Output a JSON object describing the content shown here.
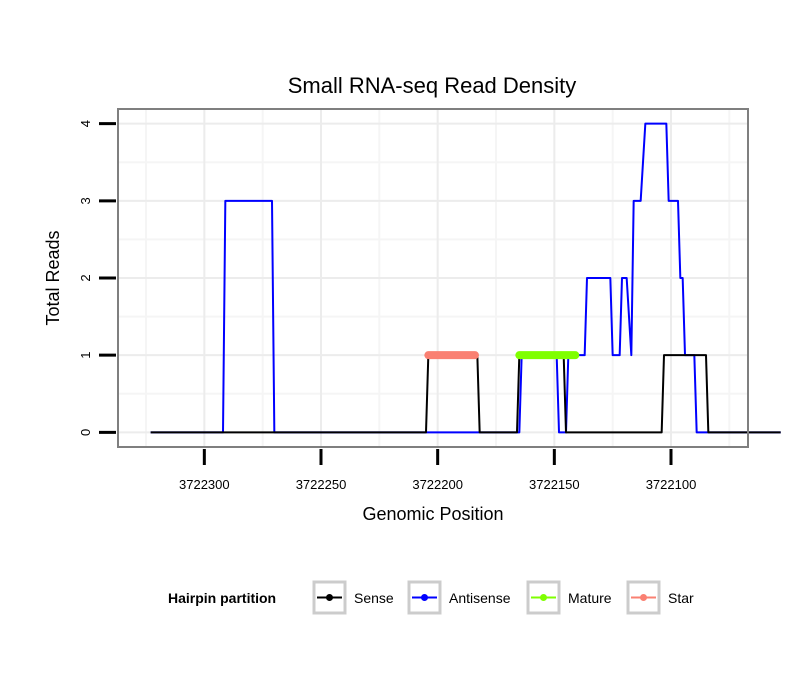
{
  "chart_data": {
    "type": "line",
    "title": "Small RNA-seq Read Density",
    "xlabel": "Genomic Position",
    "ylabel": "Total Reads",
    "x_reversed": true,
    "xlim": [
      3722337,
      3722067
    ],
    "ylim": [
      -0.19,
      4.19
    ],
    "x_ticks": [
      3722300,
      3722250,
      3722200,
      3722150,
      3722100
    ],
    "x_tick_labels": [
      "3722300",
      "3722250",
      "3722200",
      "3722150",
      "3722100"
    ],
    "y_ticks": [
      0,
      1,
      2,
      3,
      4
    ],
    "y_tick_labels": [
      "0",
      "1",
      "2",
      "3",
      "4"
    ],
    "legend": {
      "title": "Hairpin partition",
      "position": "bottom",
      "entries": [
        {
          "name": "Sense",
          "color": "#000000"
        },
        {
          "name": "Antisense",
          "color": "#0000ff"
        },
        {
          "name": "Mature",
          "color": "#7fff00"
        },
        {
          "name": "Star",
          "color": "#fa8072"
        }
      ]
    },
    "series": [
      {
        "name": "Antisense",
        "color": "#0000ff",
        "points": [
          [
            3722323,
            0
          ],
          [
            3722292,
            0
          ],
          [
            3722291,
            3
          ],
          [
            3722271,
            3
          ],
          [
            3722270,
            0
          ],
          [
            3722165,
            0
          ],
          [
            3722164,
            1
          ],
          [
            3722149,
            1
          ],
          [
            3722148,
            0
          ],
          [
            3722145,
            0
          ],
          [
            3722144,
            1
          ],
          [
            3722137,
            1
          ],
          [
            3722136,
            2
          ],
          [
            3722126,
            2
          ],
          [
            3722125,
            1
          ],
          [
            3722122,
            1
          ],
          [
            3722121,
            2
          ],
          [
            3722119,
            2
          ],
          [
            3722117,
            1
          ],
          [
            3722116,
            3
          ],
          [
            3722113,
            3
          ],
          [
            3722111,
            4
          ],
          [
            3722102,
            4
          ],
          [
            3722101,
            3
          ],
          [
            3722097,
            3
          ],
          [
            3722096,
            2
          ],
          [
            3722095,
            2
          ],
          [
            3722094,
            1
          ],
          [
            3722090,
            1
          ],
          [
            3722089,
            0
          ],
          [
            3722053,
            0
          ]
        ]
      },
      {
        "name": "Sense",
        "color": "#000000",
        "points": [
          [
            3722323,
            0
          ],
          [
            3722205,
            0
          ],
          [
            3722204,
            1
          ],
          [
            3722183,
            1
          ],
          [
            3722182,
            0
          ],
          [
            3722166,
            0
          ],
          [
            3722165,
            1
          ],
          [
            3722146,
            1
          ],
          [
            3722145,
            0
          ],
          [
            3722104,
            0
          ],
          [
            3722103,
            1
          ],
          [
            3722085,
            1
          ],
          [
            3722084,
            0
          ],
          [
            3722053,
            0
          ]
        ]
      },
      {
        "name": "Star",
        "color": "#fa8072",
        "points": [
          [
            3722204,
            1
          ],
          [
            3722184,
            1
          ]
        ]
      },
      {
        "name": "Mature",
        "color": "#7fff00",
        "points": [
          [
            3722165,
            1
          ],
          [
            3722141,
            1
          ]
        ]
      }
    ]
  }
}
